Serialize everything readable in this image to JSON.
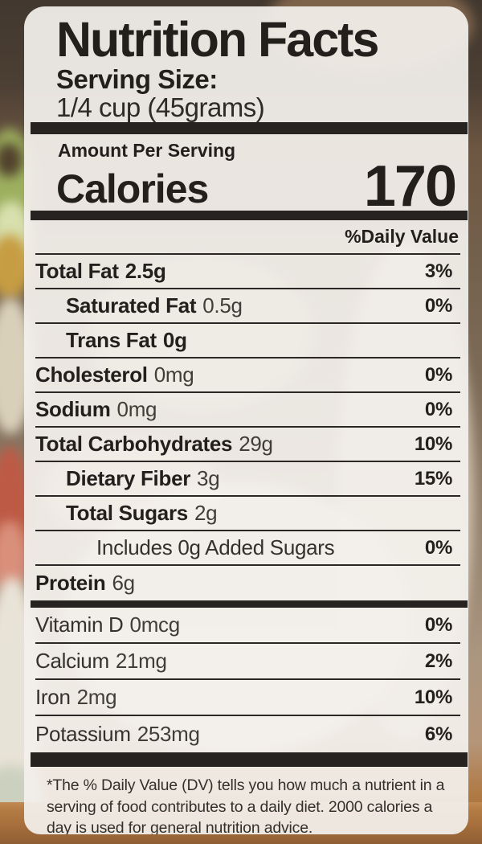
{
  "label": {
    "title": "Nutrition Facts",
    "serving_size_label": "Serving Size:",
    "serving_size_value": "1/4 cup (45grams)",
    "amount_per_serving": "Amount Per Serving",
    "calories_label": "Calories",
    "calories_value": "170",
    "daily_value_header": "%Daily Value",
    "rows": [
      {
        "name": "Total Fat",
        "amount": "2.5g",
        "percent": "3%",
        "indent": 0,
        "name_bold": true,
        "amount_bold": true,
        "group": "macro",
        "bar_after": ""
      },
      {
        "name": "Saturated Fat",
        "amount": "0.5g",
        "percent": "0%",
        "indent": 1,
        "name_bold": true,
        "amount_bold": false,
        "group": "macro",
        "bar_after": ""
      },
      {
        "name": "Trans Fat",
        "amount": "0g",
        "percent": "",
        "indent": 1,
        "name_bold": true,
        "amount_bold": true,
        "group": "macro",
        "bar_after": ""
      },
      {
        "name": "Cholesterol",
        "amount": "0mg",
        "percent": "0%",
        "indent": 0,
        "name_bold": true,
        "amount_bold": false,
        "group": "macro",
        "bar_after": ""
      },
      {
        "name": "Sodium",
        "amount": "0mg",
        "percent": "0%",
        "indent": 0,
        "name_bold": true,
        "amount_bold": false,
        "group": "macro",
        "bar_after": ""
      },
      {
        "name": "Total Carbohydrates",
        "amount": "29g",
        "percent": "10%",
        "indent": 0,
        "name_bold": true,
        "amount_bold": false,
        "group": "macro",
        "bar_after": ""
      },
      {
        "name": "Dietary Fiber",
        "amount": "3g",
        "percent": "15%",
        "indent": 1,
        "name_bold": true,
        "amount_bold": false,
        "group": "macro",
        "bar_after": ""
      },
      {
        "name": "Total Sugars",
        "amount": "2g",
        "percent": "",
        "indent": 1,
        "name_bold": true,
        "amount_bold": false,
        "group": "macro",
        "bar_after": ""
      },
      {
        "name": "Includes 0g Added Sugars",
        "amount": "",
        "percent": "0%",
        "indent": 2,
        "name_bold": false,
        "amount_bold": false,
        "group": "macro",
        "bar_after": ""
      },
      {
        "name": "Protein",
        "amount": "6g",
        "percent": "",
        "indent": 0,
        "name_bold": true,
        "amount_bold": false,
        "group": "macro",
        "bar_after": "md"
      },
      {
        "name": "Vitamin D",
        "amount": "0mcg",
        "percent": "0%",
        "indent": 0,
        "name_bold": false,
        "amount_bold": false,
        "group": "micro",
        "bar_after": ""
      },
      {
        "name": "Calcium",
        "amount": "21mg",
        "percent": "2%",
        "indent": 0,
        "name_bold": false,
        "amount_bold": false,
        "group": "micro",
        "bar_after": ""
      },
      {
        "name": "Iron",
        "amount": "2mg",
        "percent": "10%",
        "indent": 0,
        "name_bold": false,
        "amount_bold": false,
        "group": "micro",
        "bar_after": ""
      },
      {
        "name": "Potassium",
        "amount": "253mg",
        "percent": "6%",
        "indent": 0,
        "name_bold": false,
        "amount_bold": false,
        "group": "micro",
        "bar_after": "bot"
      }
    ],
    "footnote": "*The % Daily Value (DV) tells you how much a nutrient in a serving of food contributes to a daily diet. 2000 calories a day is used for general nutrition advice."
  },
  "colors": {
    "ink": "#221f1c",
    "divider": "#2b2724",
    "bar": "#272320"
  }
}
